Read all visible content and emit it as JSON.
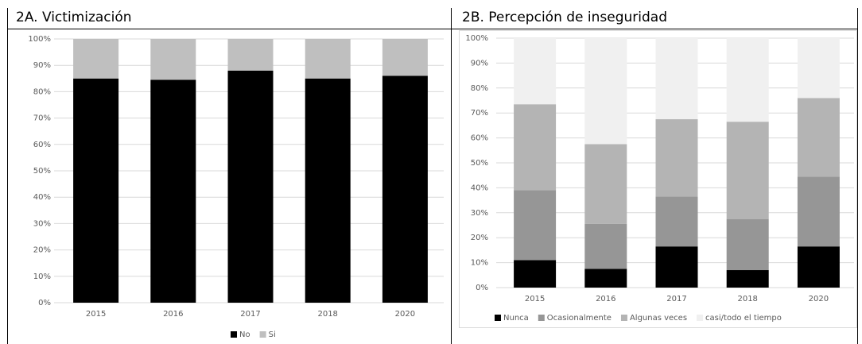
{
  "chart_data": [
    {
      "type": "bar",
      "stacked": true,
      "title": "2A. Victimización",
      "categories": [
        "2015",
        "2016",
        "2017",
        "2018",
        "2020"
      ],
      "series": [
        {
          "name": "No",
          "color": "#000000",
          "values": [
            85,
            84.5,
            88,
            85,
            86
          ]
        },
        {
          "name": "Si",
          "color": "#bfbfbf",
          "values": [
            15,
            15.5,
            12,
            15,
            14
          ]
        }
      ],
      "ylim": [
        0,
        100
      ],
      "yticks": [
        {
          "value": 0,
          "label": "0%"
        },
        {
          "value": 10,
          "label": "10%"
        },
        {
          "value": 20,
          "label": "20%"
        },
        {
          "value": 30,
          "label": "30%"
        },
        {
          "value": 40,
          "label": "40%"
        },
        {
          "value": 50,
          "label": "50%"
        },
        {
          "value": 60,
          "label": "60%"
        },
        {
          "value": 70,
          "label": "70%"
        },
        {
          "value": 80,
          "label": "80%"
        },
        {
          "value": 90,
          "label": "90%"
        },
        {
          "value": 100,
          "label": "100%"
        }
      ],
      "grid": true,
      "legend": "bottom"
    },
    {
      "type": "bar",
      "stacked": true,
      "title": "2B. Percepción de inseguridad",
      "categories": [
        "2015",
        "2016",
        "2017",
        "2018",
        "2020"
      ],
      "series": [
        {
          "name": "Nunca",
          "color": "#000000",
          "values": [
            11,
            7.5,
            16.5,
            7,
            16.5
          ]
        },
        {
          "name": "Ocasionalmente",
          "color": "#969696",
          "values": [
            28,
            18,
            20,
            20.5,
            28
          ]
        },
        {
          "name": "Algunas veces",
          "color": "#b4b4b4",
          "values": [
            34.5,
            32,
            31,
            39,
            31.5
          ]
        },
        {
          "name": "casi/todo el tiempo",
          "color": "#f0f0f0",
          "values": [
            26.5,
            42.5,
            32.5,
            33.5,
            24
          ]
        }
      ],
      "ylim": [
        0,
        100
      ],
      "yticks": [
        {
          "value": 0,
          "label": "0%"
        },
        {
          "value": 10,
          "label": "10%"
        },
        {
          "value": 20,
          "label": "20%"
        },
        {
          "value": 30,
          "label": "30%"
        },
        {
          "value": 40,
          "label": "40%"
        },
        {
          "value": 50,
          "label": "50%"
        },
        {
          "value": 60,
          "label": "60%"
        },
        {
          "value": 70,
          "label": "70%"
        },
        {
          "value": 80,
          "label": "80%"
        },
        {
          "value": 90,
          "label": "90%"
        },
        {
          "value": 100,
          "label": "100%"
        }
      ],
      "grid": true,
      "legend": "bottom"
    }
  ]
}
